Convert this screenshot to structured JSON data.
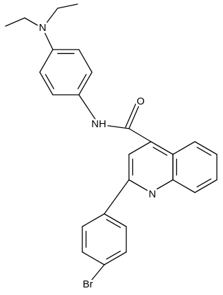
{
  "atoms": [
    {
      "label": "N"
    },
    {
      "label": "NH"
    },
    {
      "label": "O"
    },
    {
      "label": "N"
    },
    {
      "label": "Br"
    }
  ]
}
